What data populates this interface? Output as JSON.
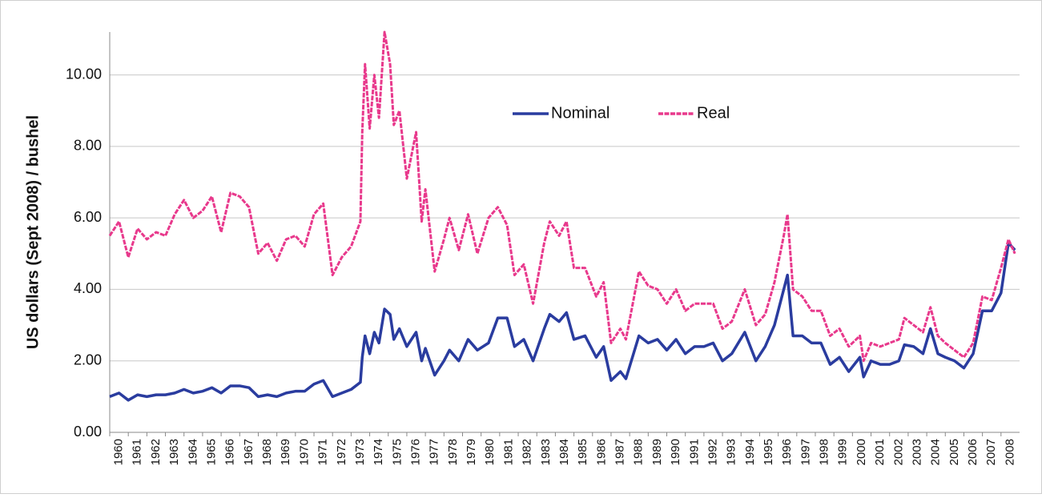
{
  "chart_data": {
    "type": "line",
    "y_label": "US dollars (Sept 2008) / bushel",
    "x": [
      1960,
      1960.5,
      1961,
      1961.5,
      1962,
      1962.5,
      1963,
      1963.5,
      1964,
      1964.5,
      1965,
      1965.5,
      1966,
      1966.5,
      1967,
      1967.5,
      1968,
      1968.5,
      1969,
      1969.5,
      1970,
      1970.5,
      1971,
      1971.5,
      1972,
      1972.5,
      1973,
      1973.5,
      1973.6,
      1973.75,
      1974,
      1974.25,
      1974.5,
      1974.8,
      1975.1,
      1975.3,
      1975.6,
      1976,
      1976.5,
      1976.8,
      1977,
      1977.5,
      1978,
      1978.3,
      1978.8,
      1979.3,
      1979.8,
      1980.4,
      1980.9,
      1981.4,
      1981.8,
      1982.3,
      1982.8,
      1983.4,
      1983.7,
      1984.2,
      1984.6,
      1985,
      1985.6,
      1986.2,
      1986.6,
      1987,
      1987.5,
      1987.8,
      1988.5,
      1989,
      1989.5,
      1990,
      1990.5,
      1991,
      1991.5,
      1992,
      1992.5,
      1993,
      1993.5,
      1994.2,
      1994.8,
      1995.3,
      1995.8,
      1996.3,
      1996.5,
      1996.8,
      1997.3,
      1997.8,
      1998.3,
      1998.8,
      1999.3,
      1999.8,
      2000.4,
      2000.6,
      2001,
      2001.5,
      2002,
      2002.5,
      2002.8,
      2003.3,
      2003.8,
      2004.2,
      2004.6,
      2005,
      2005.5,
      2006,
      2006.5,
      2007,
      2007.5,
      2008,
      2008.4,
      2008.75
    ],
    "series": [
      {
        "name": "Nominal",
        "color": "#2a3c9f",
        "values": [
          1.0,
          1.1,
          0.9,
          1.05,
          1.0,
          1.05,
          1.05,
          1.1,
          1.2,
          1.1,
          1.15,
          1.25,
          1.1,
          1.3,
          1.3,
          1.25,
          1.0,
          1.05,
          1.0,
          1.1,
          1.15,
          1.15,
          1.35,
          1.45,
          1.0,
          1.1,
          1.2,
          1.4,
          2.1,
          2.7,
          2.2,
          2.8,
          2.5,
          3.45,
          3.3,
          2.6,
          2.9,
          2.4,
          2.8,
          2.0,
          2.35,
          1.6,
          2.0,
          2.3,
          2.0,
          2.6,
          2.3,
          2.5,
          3.2,
          3.2,
          2.4,
          2.6,
          2.0,
          2.9,
          3.3,
          3.1,
          3.35,
          2.6,
          2.7,
          2.1,
          2.4,
          1.45,
          1.7,
          1.5,
          2.7,
          2.5,
          2.6,
          2.3,
          2.6,
          2.2,
          2.4,
          2.4,
          2.5,
          2.0,
          2.2,
          2.8,
          2.0,
          2.4,
          3.0,
          4.0,
          4.4,
          2.7,
          2.7,
          2.5,
          2.5,
          1.9,
          2.1,
          1.7,
          2.1,
          1.55,
          2.0,
          1.9,
          1.9,
          2.0,
          2.45,
          2.4,
          2.2,
          2.9,
          2.2,
          2.1,
          2.0,
          1.8,
          2.2,
          3.4,
          3.4,
          3.9,
          5.3,
          5.1
        ]
      },
      {
        "name": "Real",
        "color": "#e8398c",
        "values": [
          5.5,
          5.9,
          4.9,
          5.7,
          5.4,
          5.6,
          5.5,
          6.1,
          6.5,
          6.0,
          6.2,
          6.6,
          5.6,
          6.7,
          6.6,
          6.3,
          5.0,
          5.3,
          4.8,
          5.4,
          5.5,
          5.2,
          6.1,
          6.4,
          4.4,
          4.9,
          5.2,
          5.9,
          8.4,
          10.3,
          8.5,
          10.0,
          8.8,
          11.2,
          10.3,
          8.6,
          9.0,
          7.1,
          8.4,
          5.9,
          6.8,
          4.5,
          5.4,
          6.0,
          5.1,
          6.1,
          5.0,
          6.0,
          6.3,
          5.8,
          4.4,
          4.7,
          3.6,
          5.3,
          5.9,
          5.5,
          5.9,
          4.6,
          4.6,
          3.8,
          4.2,
          2.5,
          2.9,
          2.6,
          4.5,
          4.1,
          4.0,
          3.6,
          4.0,
          3.4,
          3.6,
          3.6,
          3.6,
          2.9,
          3.1,
          4.0,
          3.0,
          3.3,
          4.2,
          5.5,
          6.1,
          4.0,
          3.8,
          3.4,
          3.4,
          2.7,
          2.9,
          2.4,
          2.7,
          2.0,
          2.5,
          2.4,
          2.5,
          2.6,
          3.2,
          3.0,
          2.8,
          3.5,
          2.7,
          2.5,
          2.3,
          2.1,
          2.5,
          3.8,
          3.7,
          4.6,
          5.4,
          5.0
        ]
      }
    ],
    "xlim": [
      1960,
      2009
    ],
    "xticks": [
      1960,
      1961,
      1962,
      1963,
      1964,
      1965,
      1966,
      1967,
      1968,
      1969,
      1970,
      1971,
      1972,
      1973,
      1974,
      1975,
      1976,
      1977,
      1978,
      1979,
      1980,
      1981,
      1982,
      1983,
      1984,
      1985,
      1986,
      1987,
      1988,
      1989,
      1990,
      1991,
      1992,
      1993,
      1994,
      1995,
      1996,
      1997,
      1998,
      1999,
      2000,
      2001,
      2002,
      2003,
      2004,
      2005,
      2006,
      2007,
      2008
    ],
    "ylim": [
      0,
      11.2
    ],
    "yticks": [
      {
        "value": 0,
        "label": "0.00"
      },
      {
        "value": 2,
        "label": "2.00"
      },
      {
        "value": 4,
        "label": "4.00"
      },
      {
        "value": 6,
        "label": "6.00"
      },
      {
        "value": 8,
        "label": "8.00"
      },
      {
        "value": 10,
        "label": "10.00"
      }
    ],
    "grid": true
  }
}
